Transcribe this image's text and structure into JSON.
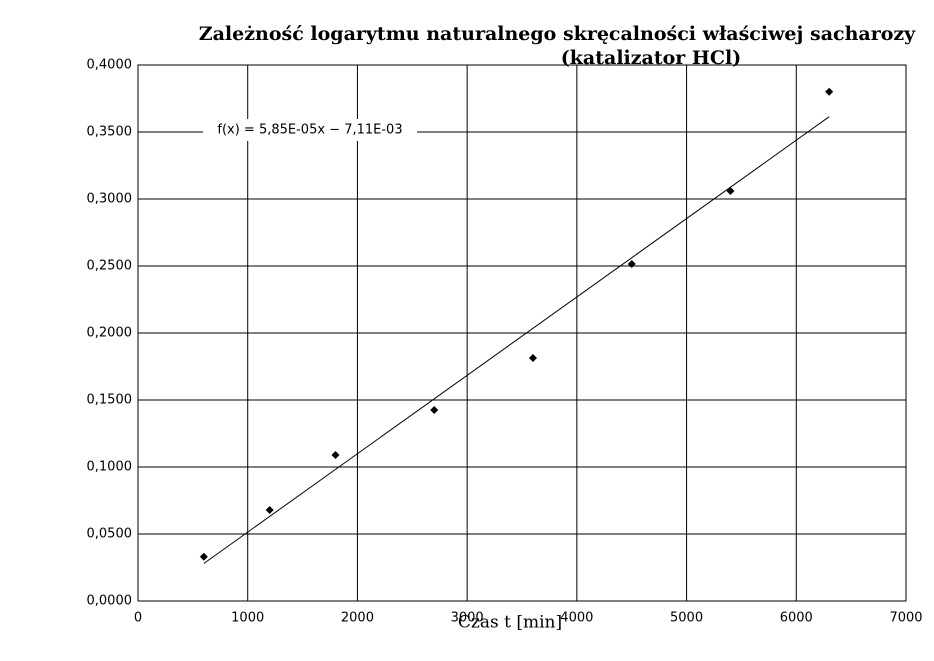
{
  "chart_data": {
    "type": "scatter",
    "title": "Zależność logarytmu naturalnego skręcalności właściwej sacharozy",
    "subtitle": "(katalizator HCl)",
    "x_label": "Czas t [min]",
    "x": [
      600,
      1200,
      1800,
      2700,
      3600,
      4500,
      5400,
      6300
    ],
    "series": [
      {
        "color": "#000000",
        "values": [
          0.033,
          0.0679,
          0.109,
          0.1425,
          0.1813,
          0.2515,
          0.306,
          0.38
        ]
      }
    ],
    "trendline": {
      "slope": 5.85e-05,
      "intercept": -0.00711,
      "label": "f(x) = 5,85E-05x − 7,11E-03",
      "color": "#000000"
    },
    "xlim": [
      0,
      7000
    ],
    "ylim": [
      0,
      0.4
    ],
    "xticks": [
      0,
      1000,
      2000,
      3000,
      4000,
      5000,
      6000,
      7000
    ],
    "yticks": [
      {
        "value": 0,
        "label": "0,0000"
      },
      {
        "value": 0.05,
        "label": "0,0500"
      },
      {
        "value": 0.1,
        "label": "0,1000"
      },
      {
        "value": 0.15,
        "label": "0,1500"
      },
      {
        "value": 0.2,
        "label": "0,2000"
      },
      {
        "value": 0.25,
        "label": "0,2500"
      },
      {
        "value": 0.3,
        "label": "0,3000"
      },
      {
        "value": 0.35,
        "label": "0,3500"
      },
      {
        "value": 0.4,
        "label": "0,4000"
      }
    ],
    "grid": true
  }
}
